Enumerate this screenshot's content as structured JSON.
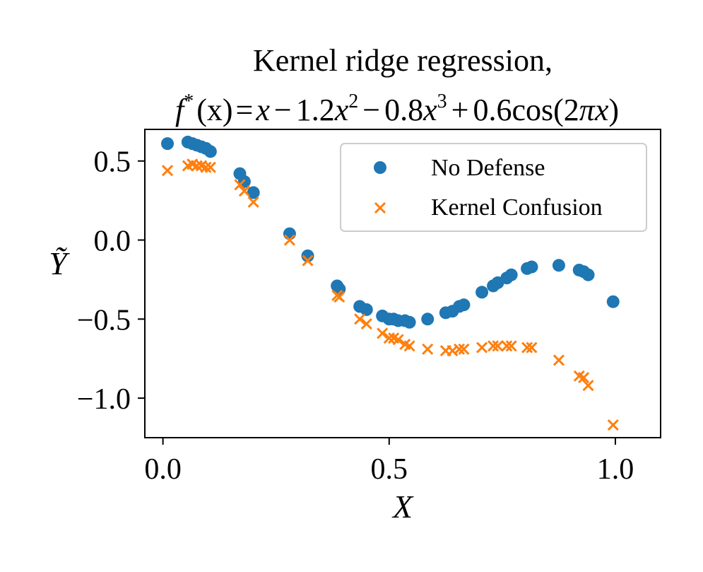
{
  "chart_data": {
    "type": "scatter",
    "title": "Kernel ridge regression,",
    "subtitle_math": {
      "prefix": "f",
      "sup_star": "*",
      "arg": "(x)",
      "eq": "=",
      "t1": "x",
      "op1": "−",
      "coef2": "1.2",
      "var2": "x",
      "pow2": "2",
      "op2": "−",
      "coef3": "0.8",
      "var3": "x",
      "pow3": "3",
      "op3": "+",
      "coef4": "0.6cos(2",
      "pi": "π",
      "var4": "x",
      "close": ")"
    },
    "xlabel": "X",
    "ylabel": "Ỹ",
    "xlim": [
      -0.04,
      1.1
    ],
    "ylim": [
      -1.25,
      0.7
    ],
    "xticks": [
      {
        "value": 0.0,
        "label": "0.0"
      },
      {
        "value": 0.5,
        "label": "0.5"
      },
      {
        "value": 1.0,
        "label": "1.0"
      }
    ],
    "yticks": [
      {
        "value": 0.5,
        "label": "0.5"
      },
      {
        "value": 0.0,
        "label": "0.0"
      },
      {
        "value": -0.5,
        "label": "−0.5"
      },
      {
        "value": -1.0,
        "label": "−1.0"
      }
    ],
    "legend_position": "top-right",
    "series": [
      {
        "name": "No Defense",
        "marker": "circle",
        "color": "#1f77b4",
        "x": [
          0.01,
          0.055,
          0.065,
          0.075,
          0.085,
          0.095,
          0.105,
          0.17,
          0.18,
          0.2,
          0.28,
          0.32,
          0.385,
          0.39,
          0.435,
          0.45,
          0.485,
          0.5,
          0.51,
          0.52,
          0.535,
          0.545,
          0.585,
          0.625,
          0.64,
          0.655,
          0.665,
          0.705,
          0.73,
          0.74,
          0.76,
          0.77,
          0.805,
          0.815,
          0.875,
          0.92,
          0.93,
          0.94,
          0.995
        ],
        "y": [
          0.61,
          0.62,
          0.61,
          0.6,
          0.59,
          0.58,
          0.56,
          0.42,
          0.37,
          0.3,
          0.04,
          -0.1,
          -0.29,
          -0.31,
          -0.42,
          -0.44,
          -0.48,
          -0.5,
          -0.5,
          -0.51,
          -0.51,
          -0.52,
          -0.5,
          -0.46,
          -0.45,
          -0.42,
          -0.41,
          -0.33,
          -0.29,
          -0.27,
          -0.24,
          -0.22,
          -0.18,
          -0.17,
          -0.16,
          -0.19,
          -0.2,
          -0.22,
          -0.39
        ]
      },
      {
        "name": "Kernel Confusion",
        "marker": "x",
        "color": "#ff7f0e",
        "x": [
          0.01,
          0.055,
          0.065,
          0.075,
          0.085,
          0.095,
          0.105,
          0.17,
          0.18,
          0.2,
          0.28,
          0.32,
          0.385,
          0.39,
          0.435,
          0.45,
          0.485,
          0.5,
          0.51,
          0.52,
          0.535,
          0.545,
          0.585,
          0.625,
          0.64,
          0.655,
          0.665,
          0.705,
          0.73,
          0.74,
          0.76,
          0.77,
          0.805,
          0.815,
          0.875,
          0.92,
          0.93,
          0.94,
          0.995
        ],
        "y": [
          0.44,
          0.47,
          0.48,
          0.47,
          0.47,
          0.46,
          0.46,
          0.35,
          0.31,
          0.24,
          0.0,
          -0.13,
          -0.35,
          -0.36,
          -0.5,
          -0.53,
          -0.59,
          -0.62,
          -0.62,
          -0.63,
          -0.66,
          -0.67,
          -0.69,
          -0.7,
          -0.7,
          -0.69,
          -0.69,
          -0.68,
          -0.67,
          -0.67,
          -0.67,
          -0.67,
          -0.68,
          -0.68,
          -0.76,
          -0.86,
          -0.87,
          -0.92,
          -1.17
        ]
      }
    ]
  }
}
